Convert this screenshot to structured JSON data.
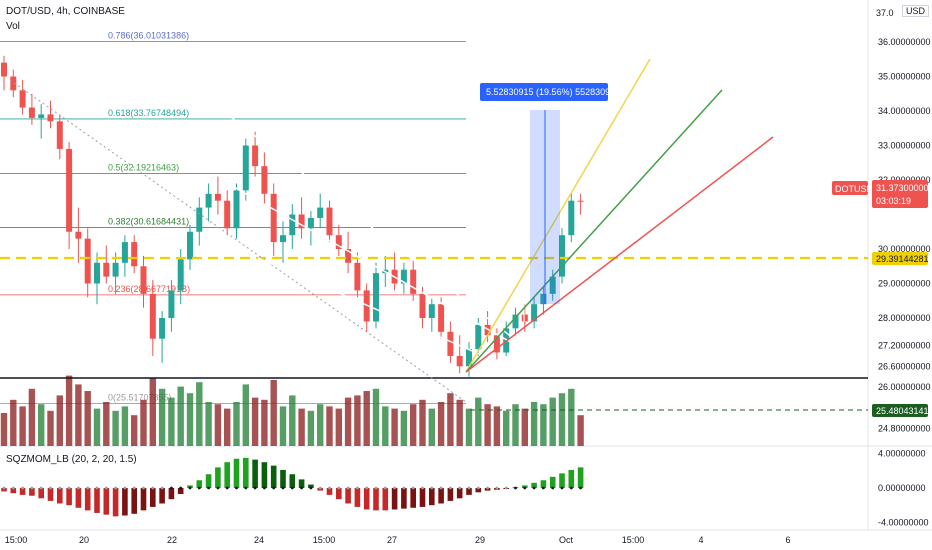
{
  "header": {
    "symbol_line": "DOT/USD, 4h, COINBASE",
    "volume_label": "Vol",
    "indicator_label": "SQZMOM_LB (20, 2, 20, 1.5)",
    "currency": "USD"
  },
  "price_axis": {
    "top_label": "37.0",
    "labels": [
      "36.00000000",
      "35.00000000",
      "34.00000000",
      "33.00000000",
      "32.00000000",
      "30.00000000",
      "29.00000000",
      "28.00000000",
      "27.20000000",
      "26.60000000",
      "26.00000000",
      "24.80000000"
    ],
    "current": {
      "symbol": "DOTUSD",
      "price": "31.37300000",
      "countdown": "03:03:19",
      "color": "#ef5350"
    },
    "dashed_level": {
      "label": "29.39144281",
      "color": "#f0d000"
    },
    "volume_level": {
      "label": "25.48043141",
      "color": "#1b5e20"
    }
  },
  "indicator_axis": {
    "labels": [
      "4.00000000",
      "0.00000000",
      "-4.00000000"
    ]
  },
  "time_axis": {
    "labels": [
      "15:00",
      "20",
      "22",
      "24",
      "15:00",
      "27",
      "29",
      "Oct",
      "15:00",
      "4",
      "6"
    ]
  },
  "fib_levels": [
    {
      "label": "0.786(36.01031386)",
      "value": 36.01,
      "color": "#5b6bd6"
    },
    {
      "label": "0.618(33.76748494)",
      "value": 33.77,
      "color": "#26a69a"
    },
    {
      "label": "0.5(32.19216463)",
      "value": 32.19,
      "color": "#43a047"
    },
    {
      "label": "0.382(30.61684431)",
      "value": 30.62,
      "color": "#2e7d32"
    },
    {
      "label": "0.236(28.6677191B)",
      "value": 28.67,
      "color": "#ef5350"
    },
    {
      "label": "0(25.51707855)",
      "value": 25.52,
      "color": "#9e9e9e"
    }
  ],
  "measure_label": "5.52830915 (19.56%) 552830915",
  "chart_data": {
    "type": "candlestick",
    "title": "DOT/USD, 4h, COINBASE",
    "ylim": [
      24.4,
      37.0
    ],
    "candles": [
      [
        35.4,
        35.6,
        34.6,
        35.0
      ],
      [
        35.0,
        35.2,
        34.4,
        34.6
      ],
      [
        34.6,
        34.9,
        33.9,
        34.1
      ],
      [
        34.1,
        34.5,
        33.6,
        33.8
      ],
      [
        33.8,
        34.2,
        33.2,
        33.9
      ],
      [
        33.9,
        34.3,
        33.5,
        33.7
      ],
      [
        33.7,
        33.9,
        32.6,
        32.9
      ],
      [
        32.9,
        33.1,
        30.0,
        30.5
      ],
      [
        30.5,
        31.2,
        29.6,
        30.3
      ],
      [
        30.3,
        30.6,
        28.6,
        29.0
      ],
      [
        29.0,
        29.9,
        28.4,
        29.6
      ],
      [
        29.6,
        30.1,
        29.0,
        29.2
      ],
      [
        29.2,
        29.9,
        28.7,
        29.6
      ],
      [
        29.6,
        30.4,
        29.2,
        30.2
      ],
      [
        30.2,
        30.4,
        29.3,
        29.5
      ],
      [
        29.5,
        29.8,
        28.3,
        28.7
      ],
      [
        28.7,
        29.1,
        26.9,
        27.4
      ],
      [
        27.4,
        28.2,
        26.7,
        28.0
      ],
      [
        28.0,
        29.1,
        27.6,
        28.8
      ],
      [
        28.8,
        30.0,
        28.4,
        29.7
      ],
      [
        29.7,
        30.7,
        29.4,
        30.5
      ],
      [
        30.5,
        31.5,
        30.1,
        31.2
      ],
      [
        31.2,
        31.9,
        30.8,
        31.6
      ],
      [
        31.6,
        32.1,
        31.0,
        31.4
      ],
      [
        31.4,
        31.7,
        30.4,
        30.6
      ],
      [
        30.6,
        31.9,
        30.3,
        31.7
      ],
      [
        31.7,
        33.2,
        31.4,
        33.0
      ],
      [
        33.0,
        33.4,
        32.1,
        32.4
      ],
      [
        32.4,
        32.8,
        31.3,
        31.6
      ],
      [
        31.6,
        31.9,
        29.8,
        30.2
      ],
      [
        30.2,
        30.8,
        29.6,
        30.4
      ],
      [
        30.4,
        31.3,
        30.0,
        31.0
      ],
      [
        31.0,
        31.5,
        30.3,
        30.6
      ],
      [
        30.6,
        31.1,
        30.1,
        30.9
      ],
      [
        30.9,
        31.6,
        30.6,
        31.2
      ],
      [
        31.2,
        31.4,
        30.2,
        30.4
      ],
      [
        30.4,
        30.7,
        29.8,
        30.0
      ],
      [
        30.0,
        30.5,
        29.3,
        29.6
      ],
      [
        29.6,
        29.9,
        28.6,
        28.8
      ],
      [
        28.8,
        29.0,
        27.6,
        27.9
      ],
      [
        27.9,
        29.6,
        27.7,
        29.3
      ],
      [
        29.3,
        29.8,
        28.9,
        29.4
      ],
      [
        29.4,
        29.9,
        28.8,
        29.0
      ],
      [
        29.0,
        29.6,
        28.7,
        29.4
      ],
      [
        29.4,
        29.7,
        28.5,
        28.7
      ],
      [
        28.7,
        28.9,
        27.7,
        28.0
      ],
      [
        28.0,
        28.6,
        27.6,
        28.4
      ],
      [
        28.4,
        28.6,
        27.4,
        27.6
      ],
      [
        27.6,
        27.9,
        26.7,
        26.9
      ],
      [
        26.9,
        27.5,
        26.4,
        26.6
      ],
      [
        26.6,
        27.3,
        26.3,
        27.1
      ],
      [
        27.1,
        28.0,
        26.9,
        27.8
      ],
      [
        27.8,
        28.2,
        27.3,
        27.5
      ],
      [
        27.5,
        27.7,
        26.8,
        27.0
      ],
      [
        27.0,
        27.9,
        26.9,
        27.7
      ],
      [
        27.7,
        28.3,
        27.5,
        28.1
      ],
      [
        28.1,
        28.4,
        27.6,
        27.9
      ],
      [
        27.9,
        28.6,
        27.7,
        28.4
      ],
      [
        28.4,
        28.9,
        28.1,
        28.7
      ],
      [
        28.7,
        29.4,
        28.5,
        29.2
      ],
      [
        29.2,
        30.6,
        29.0,
        30.4
      ],
      [
        30.4,
        31.6,
        30.2,
        31.4
      ],
      [
        31.4,
        31.6,
        31.0,
        31.37
      ]
    ],
    "momentum": [
      -0.4,
      -0.6,
      -0.8,
      -0.9,
      -1.2,
      -1.5,
      -1.8,
      -2.0,
      -2.3,
      -2.6,
      -2.9,
      -3.1,
      -3.3,
      -3.2,
      -3.0,
      -2.6,
      -2.2,
      -1.8,
      -1.3,
      -0.7,
      0.3,
      0.9,
      1.6,
      2.4,
      3.0,
      3.4,
      3.5,
      3.3,
      3.0,
      2.6,
      2.1,
      1.6,
      1.0,
      0.4,
      -0.3,
      -0.8,
      -1.3,
      -1.8,
      -2.2,
      -2.5,
      -2.6,
      -2.6,
      -2.5,
      -2.4,
      -2.3,
      -2.2,
      -2.0,
      -1.8,
      -1.5,
      -1.2,
      -0.8,
      -0.5,
      -0.3,
      -0.2,
      -0.1,
      0.1,
      0.3,
      0.6,
      0.9,
      1.3,
      1.7,
      2.1,
      2.4
    ],
    "volume": [
      1.5,
      2.1,
      1.8,
      2.6,
      1.9,
      1.6,
      2.3,
      3.2,
      2.8,
      2.5,
      1.7,
      2.0,
      1.6,
      1.8,
      1.4,
      2.1,
      3.1,
      2.6,
      2.2,
      2.7,
      2.4,
      2.9,
      2.0,
      1.9,
      1.7,
      2.0,
      2.8,
      2.2,
      2.1,
      3.0,
      1.8,
      2.3,
      1.7,
      1.6,
      1.9,
      1.8,
      1.7,
      2.2,
      2.3,
      2.5,
      2.6,
      1.8,
      1.7,
      1.6,
      1.9,
      2.1,
      1.7,
      2.0,
      2.4,
      2.1,
      1.7,
      2.2,
      1.9,
      1.8,
      1.6,
      1.9,
      1.7,
      2.0,
      1.9,
      2.2,
      2.4,
      2.6,
      1.4
    ]
  }
}
